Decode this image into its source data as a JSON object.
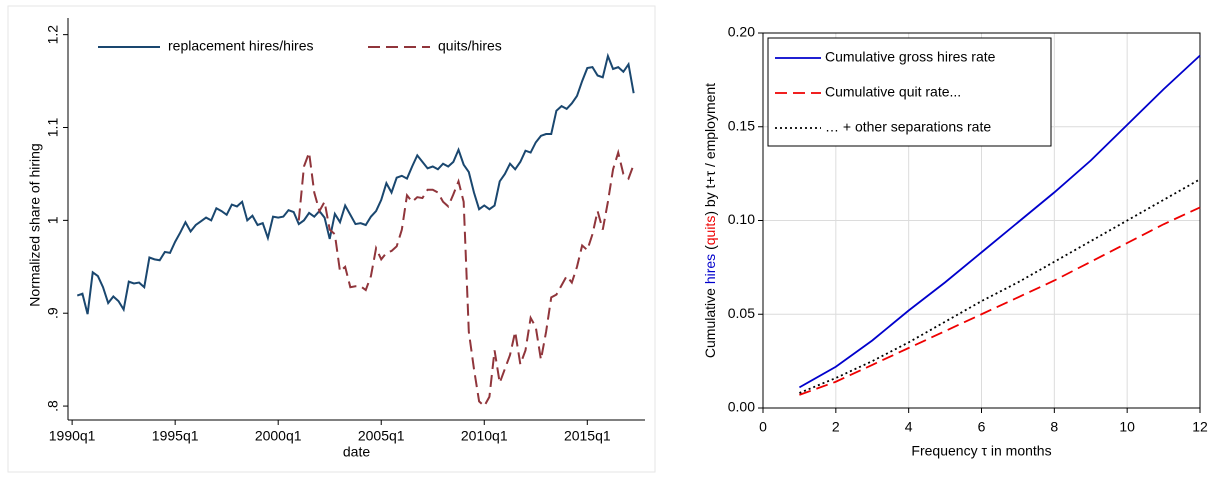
{
  "chart_data": [
    {
      "type": "line",
      "xlabel": "date",
      "ylabel": "Normalized share of hiring",
      "x": [
        1990.25,
        1990.5,
        1990.75,
        1991,
        1991.25,
        1991.5,
        1991.75,
        1992,
        1992.25,
        1992.5,
        1992.75,
        1993,
        1993.25,
        1993.5,
        1993.75,
        1994,
        1994.25,
        1994.5,
        1994.75,
        1995,
        1995.25,
        1995.5,
        1995.75,
        1996,
        1996.25,
        1996.5,
        1996.75,
        1997,
        1997.25,
        1997.5,
        1997.75,
        1998,
        1998.25,
        1998.5,
        1998.75,
        1999,
        1999.25,
        1999.5,
        1999.75,
        2000,
        2000.25,
        2000.5,
        2000.75,
        2001,
        2001.25,
        2001.5,
        2001.75,
        2002,
        2002.25,
        2002.5,
        2002.75,
        2003,
        2003.25,
        2003.5,
        2003.75,
        2004,
        2004.25,
        2004.5,
        2004.75,
        2005,
        2005.25,
        2005.5,
        2005.75,
        2006,
        2006.25,
        2006.5,
        2006.75,
        2007,
        2007.25,
        2007.5,
        2007.75,
        2008,
        2008.25,
        2008.5,
        2008.75,
        2009,
        2009.25,
        2009.5,
        2009.75,
        2010,
        2010.25,
        2010.5,
        2010.75,
        2011,
        2011.25,
        2011.5,
        2011.75,
        2012,
        2012.25,
        2012.5,
        2012.75,
        2013,
        2013.25,
        2013.5,
        2013.75,
        2014,
        2014.25,
        2014.5,
        2014.75,
        2015,
        2015.25,
        2015.5,
        2015.75,
        2016,
        2016.25,
        2016.5,
        2016.75,
        2017,
        2017.25
      ],
      "series": [
        {
          "name": "replacement hires/hires",
          "color": "#1a476f",
          "dash": "solid",
          "values": [
            0.919,
            0.921,
            0.899,
            0.944,
            0.94,
            0.928,
            0.911,
            0.918,
            0.913,
            0.904,
            0.934,
            0.932,
            0.933,
            0.928,
            0.96,
            0.958,
            0.957,
            0.966,
            0.965,
            0.977,
            0.987,
            0.998,
            0.988,
            0.995,
            0.999,
            1.003,
            1.0,
            1.013,
            1.01,
            1.006,
            1.017,
            1.015,
            1.02,
            1.0,
            1.005,
            0.995,
            0.997,
            0.981,
            1.004,
            1.003,
            1.004,
            1.011,
            1.009,
            0.996,
            1.0,
            1.008,
            1.004,
            1.01,
            1.003,
            0.98,
            1.007,
            0.998,
            1.016,
            1.006,
            0.996,
            0.997,
            0.995,
            1.004,
            1.01,
            1.022,
            1.04,
            1.03,
            1.046,
            1.048,
            1.045,
            1.058,
            1.07,
            1.063,
            1.056,
            1.058,
            1.055,
            1.061,
            1.058,
            1.063,
            1.076,
            1.06,
            1.052,
            1.03,
            1.012,
            1.016,
            1.012,
            1.016,
            1.042,
            1.05,
            1.061,
            1.055,
            1.063,
            1.075,
            1.073,
            1.084,
            1.091,
            1.093,
            1.093,
            1.118,
            1.123,
            1.12,
            1.126,
            1.134,
            1.15,
            1.164,
            1.165,
            1.156,
            1.154,
            1.177,
            1.163,
            1.165,
            1.16,
            1.168,
            1.137
          ]
        },
        {
          "name": "quits/hires",
          "color": "#90353b",
          "dash": "dashed",
          "values": [
            null,
            null,
            null,
            null,
            null,
            null,
            null,
            null,
            null,
            null,
            null,
            null,
            null,
            null,
            null,
            null,
            null,
            null,
            null,
            null,
            null,
            null,
            null,
            null,
            null,
            null,
            null,
            null,
            null,
            null,
            null,
            null,
            null,
            null,
            null,
            null,
            null,
            null,
            null,
            null,
            null,
            null,
            null,
            1.0,
            1.058,
            1.073,
            1.03,
            1.01,
            1.02,
            0.99,
            0.985,
            0.945,
            0.95,
            0.928,
            0.929,
            0.929,
            0.925,
            0.94,
            0.97,
            0.958,
            0.965,
            0.967,
            0.972,
            0.99,
            1.027,
            1.02,
            1.025,
            1.024,
            1.033,
            1.033,
            1.03,
            1.02,
            1.015,
            1.028,
            1.042,
            1.02,
            0.88,
            0.84,
            0.805,
            0.8,
            0.81,
            0.86,
            0.825,
            0.84,
            0.855,
            0.88,
            0.845,
            0.86,
            0.895,
            0.885,
            0.85,
            0.88,
            0.917,
            0.92,
            0.93,
            0.94,
            0.933,
            0.95,
            0.973,
            0.968,
            0.985,
            1.01,
            0.99,
            1.02,
            1.055,
            1.073,
            1.05,
            1.045,
            1.06
          ]
        }
      ],
      "xlim": [
        1989.8,
        2017.8
      ],
      "xticks": [
        {
          "value": 1990,
          "label": "1990q1"
        },
        {
          "value": 1995,
          "label": "1995q1"
        },
        {
          "value": 2000,
          "label": "2000q1"
        },
        {
          "value": 2005,
          "label": "2005q1"
        },
        {
          "value": 2010,
          "label": "2010q1"
        },
        {
          "value": 2015,
          "label": "2015q1"
        }
      ],
      "ylim": [
        0.785,
        1.205
      ],
      "yticks": [
        {
          "value": 0.8,
          "label": ".8"
        },
        {
          "value": 0.9,
          "label": ".9"
        },
        1,
        1.1,
        1.2
      ],
      "grid": false,
      "legend": "top"
    },
    {
      "type": "line",
      "xlabel": "Frequency τ in months",
      "ylabel": [
        {
          "text": "Cumulative "
        },
        {
          "text": "hires",
          "color": "#0000cc"
        },
        {
          "text": " ("
        },
        {
          "text": "quits",
          "color": "#ee0000"
        },
        {
          "text": ") by t+τ / employment"
        }
      ],
      "x": [
        1,
        2,
        3,
        4,
        5,
        6,
        7,
        8,
        9,
        10,
        11,
        12
      ],
      "series": [
        {
          "name": "Cumulative gross hires rate",
          "color": "#0000cc",
          "dash": "solid",
          "values": [
            0.011,
            0.022,
            0.036,
            0.052,
            0.067,
            0.083,
            0.099,
            0.115,
            0.132,
            0.151,
            0.17,
            0.188
          ]
        },
        {
          "name": "Cumulative quit rate...",
          "color": "#ee0000",
          "dash": "dashed",
          "values": [
            0.007,
            0.014,
            0.023,
            0.032,
            0.041,
            0.05,
            0.059,
            0.068,
            0.078,
            0.088,
            0.098,
            0.107
          ]
        },
        {
          "name": "… + other separations rate",
          "color": "#000000",
          "dash": "dotted",
          "values": [
            0.008,
            0.016,
            0.025,
            0.035,
            0.046,
            0.057,
            0.067,
            0.078,
            0.089,
            0.1,
            0.111,
            0.122
          ]
        }
      ],
      "xlim": [
        0,
        12
      ],
      "xticks": [
        0,
        2,
        4,
        6,
        8,
        10,
        12
      ],
      "ylim": [
        0,
        0.2
      ],
      "yticks": [
        {
          "value": 0,
          "label": "0.00"
        },
        {
          "value": 0.05,
          "label": "0.05"
        },
        {
          "value": 0.1,
          "label": "0.10"
        },
        {
          "value": 0.15,
          "label": "0.15"
        },
        {
          "value": 0.2,
          "label": "0.20"
        }
      ],
      "grid": true,
      "legend": "upper left"
    }
  ]
}
